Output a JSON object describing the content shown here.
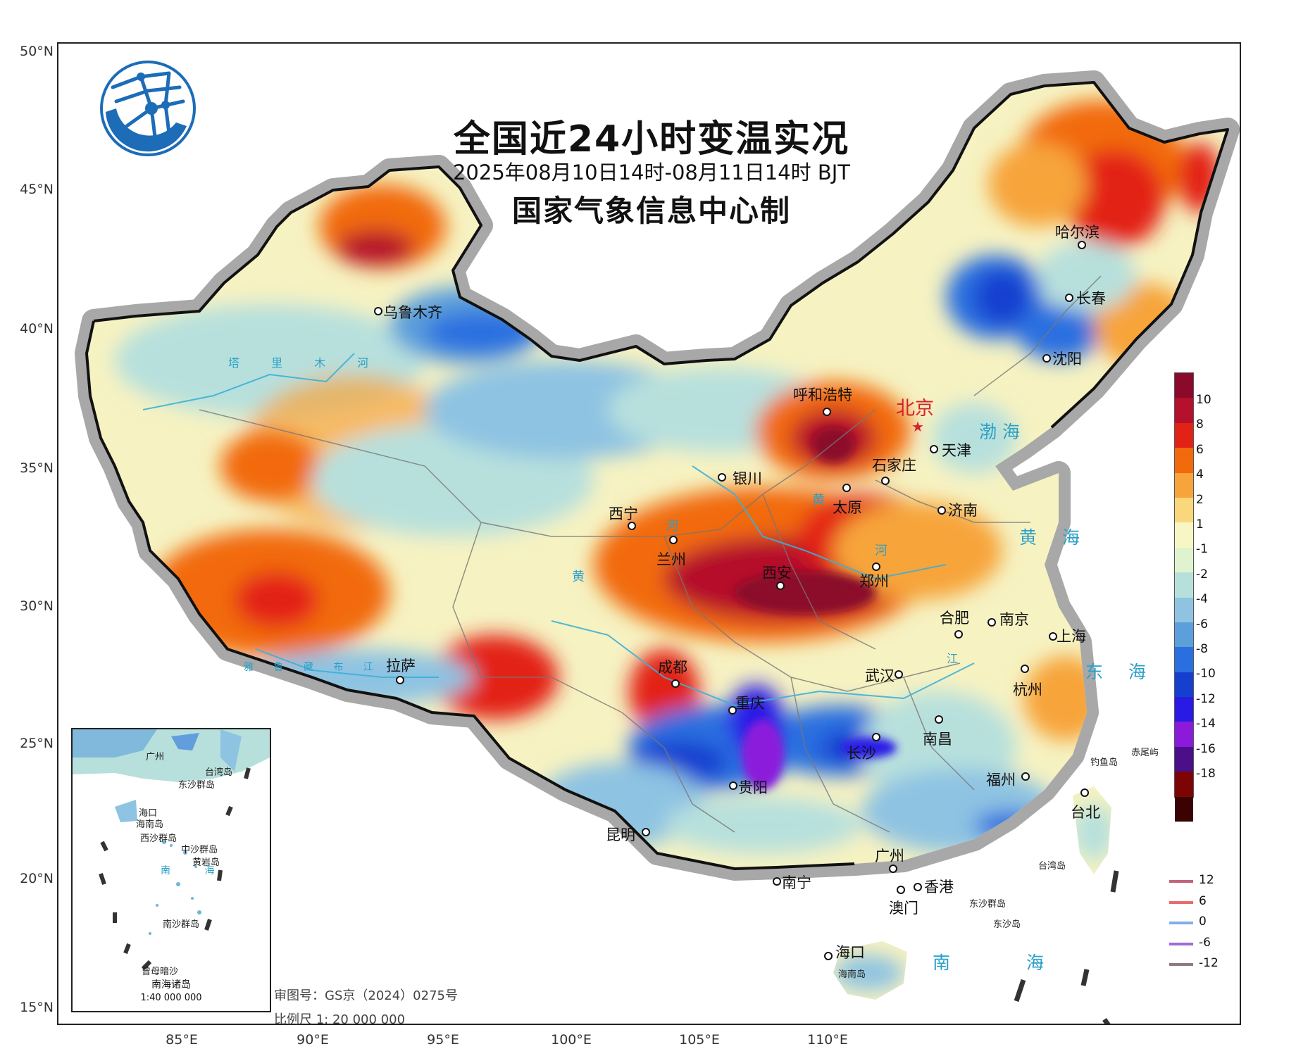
{
  "title": "全国近24小时变温实况",
  "subtitle": "2025年08月10日14时-08月11日14时 BJT",
  "issuer": "国家气象信息中心制",
  "lat_labels": [
    "50°N",
    "45°N",
    "40°N",
    "35°N",
    "30°N",
    "25°N",
    "20°N",
    "15°N"
  ],
  "lon_labels": [
    "85°E",
    "90°E",
    "95°E",
    "100°E",
    "105°E",
    "110°E"
  ],
  "capital": "北京",
  "cities": [
    {
      "id": "urumqi",
      "name": "乌鲁木齐"
    },
    {
      "id": "harbin",
      "name": "哈尔滨"
    },
    {
      "id": "changchun",
      "name": "长春"
    },
    {
      "id": "shenyang",
      "name": "沈阳"
    },
    {
      "id": "hohhot",
      "name": "呼和浩特"
    },
    {
      "id": "tianjin",
      "name": "天津"
    },
    {
      "id": "shijiazhuang",
      "name": "石家庄"
    },
    {
      "id": "yinchuan",
      "name": "银川"
    },
    {
      "id": "taiyuan",
      "name": "太原"
    },
    {
      "id": "jinan",
      "name": "济南"
    },
    {
      "id": "xining",
      "name": "西宁"
    },
    {
      "id": "lanzhou",
      "name": "兰州"
    },
    {
      "id": "xian",
      "name": "西安"
    },
    {
      "id": "zhengzhou",
      "name": "郑州"
    },
    {
      "id": "hefei",
      "name": "合肥"
    },
    {
      "id": "nanjing",
      "name": "南京"
    },
    {
      "id": "shanghai",
      "name": "上海"
    },
    {
      "id": "lhasa",
      "name": "拉萨"
    },
    {
      "id": "chengdu",
      "name": "成都"
    },
    {
      "id": "wuhan",
      "name": "武汉"
    },
    {
      "id": "hangzhou",
      "name": "杭州"
    },
    {
      "id": "chongqing",
      "name": "重庆"
    },
    {
      "id": "changsha",
      "name": "长沙"
    },
    {
      "id": "nanchang",
      "name": "南昌"
    },
    {
      "id": "guiyang",
      "name": "贵阳"
    },
    {
      "id": "fuzhou",
      "name": "福州"
    },
    {
      "id": "taipei",
      "name": "台北"
    },
    {
      "id": "kunming",
      "name": "昆明"
    },
    {
      "id": "guangzhou",
      "name": "广州"
    },
    {
      "id": "nanning",
      "name": "南宁"
    },
    {
      "id": "hongkong",
      "name": "香港"
    },
    {
      "id": "macau",
      "name": "澳门"
    },
    {
      "id": "haikou",
      "name": "海口"
    }
  ],
  "seas": {
    "bohai": "渤 海",
    "huanghai": "黄 海",
    "donghai": "东 海",
    "nanhai": "南 海"
  },
  "islands": {
    "diaoyu": "钓鱼岛",
    "chiwei": "赤尾屿",
    "dongsha": "东沙群岛",
    "dongshadao": "东沙岛",
    "taiwanstrait": "台湾岛",
    "hainan": "海南岛"
  },
  "rivers": {
    "tarim": "塔 里 木 河",
    "yellow1": "黄",
    "yellow2": "河",
    "yellow3": "黄",
    "yellow4": "河",
    "yangtze": "江",
    "yarlung": "雅 鲁 藏 布 江"
  },
  "legend": {
    "ticks": [
      "10",
      "8",
      "6",
      "4",
      "2",
      "1",
      "-1",
      "-2",
      "-4",
      "-6",
      "-8",
      "-10",
      "-12",
      "-14",
      "-16",
      "-18"
    ],
    "colors": [
      "#8b0a2c",
      "#b5102c",
      "#e32216",
      "#f26a0c",
      "#f7a43a",
      "#fbd77c",
      "#f8f6c4",
      "#dff3cf",
      "#b7e0dd",
      "#8ec3e2",
      "#5c9fda",
      "#2a6fe0",
      "#163fd0",
      "#2a1ae6",
      "#8b1adb",
      "#4b0f8a",
      "#7c0404",
      "#3b0202"
    ]
  },
  "contours": [
    {
      "label": "12",
      "color": "#c0657a"
    },
    {
      "label": "6",
      "color": "#e76c6c"
    },
    {
      "label": "0",
      "color": "#7fb0e8"
    },
    {
      "label": "-6",
      "color": "#a06ad8"
    },
    {
      "label": "-12",
      "color": "#8c7c82"
    }
  ],
  "inset": {
    "title": "南海诸岛",
    "scale": "1:40 000 000",
    "sea": "南 海",
    "labels": [
      "台湾岛",
      "广州",
      "海口",
      "海南岛",
      "东沙群岛",
      "西沙群岛",
      "中沙群岛",
      "黄岩岛",
      "南沙群岛",
      "曾母暗沙"
    ]
  },
  "footer": {
    "review": "审图号：GS京（2024）0275号",
    "scale": "比例尺 1: 20 000 000"
  }
}
